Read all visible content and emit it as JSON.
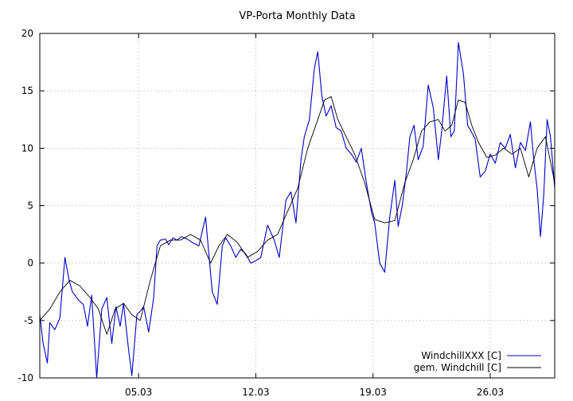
{
  "chart_data": {
    "type": "line",
    "title": "VP-Porta Monthly Data",
    "xlabel": "",
    "ylabel": "",
    "xlim": [
      0,
      30.75
    ],
    "ylim": [
      -10,
      20
    ],
    "yticks": [
      -10,
      -5,
      0,
      5,
      10,
      15,
      20
    ],
    "xticks": [
      {
        "x": 5.9,
        "label": "05.03"
      },
      {
        "x": 12.9,
        "label": "12.03"
      },
      {
        "x": 19.9,
        "label": "19.03"
      },
      {
        "x": 26.9,
        "label": "26.03"
      }
    ],
    "grid": true,
    "legend_position": "bottom-right",
    "series": [
      {
        "name": "WindchillXXX [C]",
        "color": "#0000cc",
        "x": [
          0,
          0.2,
          0.45,
          0.6,
          0.9,
          1.2,
          1.5,
          1.75,
          1.95,
          2.3,
          2.6,
          2.85,
          3.1,
          3.4,
          3.7,
          4.0,
          4.3,
          4.55,
          4.8,
          5.0,
          5.3,
          5.5,
          5.8,
          6.0,
          6.2,
          6.5,
          6.8,
          7.0,
          7.2,
          7.5,
          7.7,
          7.95,
          8.2,
          8.45,
          8.8,
          9.1,
          9.5,
          9.9,
          10.3,
          10.6,
          10.9,
          11.1,
          11.4,
          11.7,
          12.0,
          12.3,
          12.6,
          12.9,
          13.2,
          13.6,
          14.0,
          14.3,
          14.7,
          15.0,
          15.3,
          15.6,
          15.8,
          16.1,
          16.4,
          16.6,
          16.85,
          17.1,
          17.4,
          17.7,
          18.0,
          18.3,
          18.6,
          18.9,
          19.2,
          19.5,
          19.8,
          20.0,
          20.3,
          20.6,
          20.9,
          21.2,
          21.4,
          21.65,
          21.9,
          22.1,
          22.35,
          22.6,
          22.9,
          23.2,
          23.5,
          23.8,
          24.0,
          24.3,
          24.55,
          24.75,
          25.0,
          25.3,
          25.55,
          25.75,
          26.0,
          26.3,
          26.6,
          26.9,
          27.2,
          27.5,
          27.8,
          28.1,
          28.4,
          28.7,
          29.0,
          29.3,
          29.5,
          29.7,
          29.9,
          30.1,
          30.3,
          30.5,
          30.75
        ],
        "y": [
          -4.5,
          -7.0,
          -8.7,
          -5.2,
          -5.8,
          -4.8,
          0.5,
          -1.5,
          -2.5,
          -3.2,
          -3.6,
          -5.5,
          -2.8,
          -10.0,
          -4.0,
          -3.0,
          -7.0,
          -3.8,
          -5.5,
          -3.5,
          -7.5,
          -9.8,
          -4.5,
          -4.2,
          -3.8,
          -6.0,
          -3.0,
          1.5,
          2.0,
          2.1,
          1.6,
          2.2,
          2.0,
          2.3,
          2.1,
          1.8,
          1.5,
          4.0,
          -2.5,
          -3.6,
          1.5,
          2.2,
          1.5,
          0.5,
          1.2,
          0.8,
          0.0,
          0.2,
          0.5,
          3.3,
          2.0,
          0.5,
          5.5,
          6.2,
          3.5,
          9.0,
          11.0,
          12.5,
          17.0,
          18.4,
          14.5,
          12.8,
          13.7,
          11.8,
          11.5,
          10.0,
          9.5,
          8.8,
          10.0,
          7.0,
          4.5,
          3.5,
          0.0,
          -0.8,
          4.0,
          7.2,
          3.2,
          5.0,
          8.0,
          11.0,
          12.0,
          9.0,
          10.2,
          15.5,
          13.5,
          9.0,
          11.5,
          16.3,
          11.0,
          11.5,
          19.2,
          16.5,
          12.0,
          11.5,
          10.8,
          7.5,
          8.0,
          9.5,
          8.7,
          10.5,
          10.0,
          11.2,
          8.3,
          10.5,
          9.8,
          12.3,
          9.0,
          6.5,
          2.3,
          6.0,
          12.5,
          11.0,
          6.5
        ]
      },
      {
        "name": "gem. Windchill [C]",
        "color": "#000000",
        "x": [
          0,
          0.6,
          1.2,
          1.8,
          2.4,
          3.0,
          3.5,
          4.0,
          4.5,
          5.0,
          5.5,
          6.0,
          6.6,
          7.2,
          7.8,
          8.4,
          9.0,
          9.6,
          10.2,
          10.7,
          11.2,
          11.8,
          12.4,
          13.0,
          13.6,
          14.2,
          14.8,
          15.4,
          16.0,
          16.6,
          17.0,
          17.4,
          17.8,
          18.3,
          18.8,
          19.4,
          20.0,
          20.6,
          21.2,
          21.8,
          22.3,
          22.8,
          23.3,
          23.8,
          24.2,
          24.6,
          25.0,
          25.4,
          25.8,
          26.2,
          26.7,
          27.2,
          27.7,
          28.2,
          28.7,
          29.2,
          29.7,
          30.2,
          30.75
        ],
        "y": [
          -5.0,
          -4.0,
          -2.5,
          -1.5,
          -2.0,
          -3.0,
          -4.0,
          -6.2,
          -4.0,
          -3.5,
          -4.5,
          -5.0,
          -1.5,
          1.5,
          2.0,
          2.0,
          2.5,
          2.0,
          0.0,
          1.5,
          2.5,
          1.8,
          0.5,
          1.0,
          2.0,
          2.5,
          4.5,
          6.5,
          10.0,
          12.5,
          14.2,
          14.5,
          12.5,
          11.0,
          9.5,
          7.0,
          3.8,
          3.5,
          3.7,
          7.0,
          9.0,
          11.5,
          12.3,
          12.5,
          11.5,
          12.0,
          14.2,
          14.0,
          12.0,
          10.5,
          9.2,
          9.4,
          10.0,
          9.5,
          10.0,
          7.5,
          10.0,
          11.0,
          7.0
        ]
      }
    ]
  }
}
